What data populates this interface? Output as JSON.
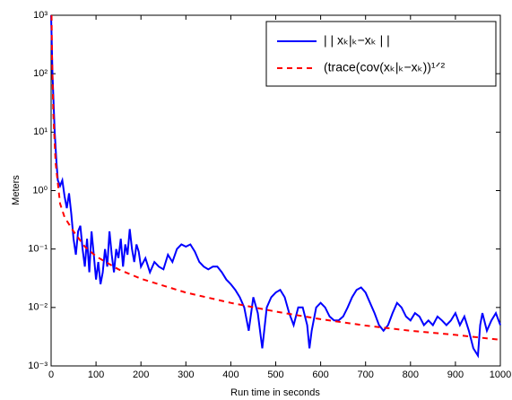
{
  "chart_data": {
    "type": "line",
    "xlabel": "Run time in seconds",
    "ylabel": "Meters",
    "xlim": [
      0,
      1000
    ],
    "xticks": [
      0,
      100,
      200,
      300,
      400,
      500,
      600,
      700,
      800,
      900,
      1000
    ],
    "ylim": [
      0.001,
      1000
    ],
    "log_y": true,
    "yticks": [
      {
        "value": 0.001,
        "label": "10⁻³"
      },
      {
        "value": 0.01,
        "label": "10⁻²"
      },
      {
        "value": 0.1,
        "label": "10⁻¹"
      },
      {
        "value": 1,
        "label": "10⁰"
      },
      {
        "value": 10,
        "label": "10¹"
      },
      {
        "value": 100,
        "label": "10²"
      },
      {
        "value": 1000,
        "label": "10³"
      }
    ],
    "legend": "upper right",
    "series": [
      {
        "name": "| | xₖ|ₖ−xₖ | |",
        "color": "#0000ff",
        "dash": false,
        "x": [
          0,
          3,
          5,
          8,
          12,
          15,
          20,
          25,
          30,
          35,
          40,
          45,
          50,
          55,
          60,
          65,
          70,
          75,
          80,
          85,
          90,
          95,
          100,
          105,
          110,
          115,
          120,
          125,
          130,
          135,
          140,
          145,
          150,
          155,
          160,
          165,
          170,
          175,
          180,
          185,
          190,
          195,
          200,
          210,
          220,
          230,
          240,
          250,
          260,
          270,
          280,
          290,
          300,
          310,
          320,
          330,
          340,
          350,
          360,
          370,
          380,
          390,
          400,
          410,
          420,
          430,
          440,
          450,
          460,
          470,
          480,
          490,
          500,
          510,
          520,
          530,
          540,
          550,
          560,
          570,
          575,
          580,
          590,
          600,
          610,
          620,
          630,
          640,
          650,
          660,
          670,
          680,
          690,
          700,
          710,
          720,
          730,
          740,
          750,
          760,
          770,
          780,
          790,
          800,
          810,
          820,
          830,
          840,
          850,
          860,
          870,
          880,
          890,
          900,
          910,
          920,
          930,
          940,
          950,
          955,
          960,
          970,
          980,
          990,
          1000
        ],
        "values": [
          1000,
          100,
          40,
          10,
          3,
          1.5,
          1.2,
          1.5,
          0.8,
          0.5,
          0.9,
          0.4,
          0.15,
          0.08,
          0.2,
          0.25,
          0.1,
          0.05,
          0.15,
          0.04,
          0.2,
          0.08,
          0.03,
          0.06,
          0.025,
          0.04,
          0.1,
          0.05,
          0.2,
          0.08,
          0.04,
          0.1,
          0.07,
          0.15,
          0.05,
          0.12,
          0.08,
          0.22,
          0.1,
          0.06,
          0.12,
          0.09,
          0.05,
          0.07,
          0.04,
          0.06,
          0.05,
          0.045,
          0.08,
          0.06,
          0.1,
          0.12,
          0.11,
          0.12,
          0.09,
          0.06,
          0.05,
          0.045,
          0.05,
          0.05,
          0.04,
          0.03,
          0.025,
          0.02,
          0.015,
          0.01,
          0.004,
          0.015,
          0.008,
          0.002,
          0.01,
          0.015,
          0.018,
          0.02,
          0.015,
          0.008,
          0.005,
          0.01,
          0.01,
          0.005,
          0.002,
          0.004,
          0.01,
          0.012,
          0.01,
          0.007,
          0.006,
          0.006,
          0.007,
          0.01,
          0.015,
          0.02,
          0.022,
          0.018,
          0.012,
          0.008,
          0.005,
          0.004,
          0.005,
          0.008,
          0.012,
          0.01,
          0.007,
          0.006,
          0.008,
          0.007,
          0.005,
          0.006,
          0.005,
          0.007,
          0.006,
          0.005,
          0.006,
          0.008,
          0.005,
          0.007,
          0.004,
          0.002,
          0.0015,
          0.005,
          0.008,
          0.004,
          0.006,
          0.008,
          0.005
        ]
      },
      {
        "name": "(trace(cov(xₖ|ₖ−xₖ))¹ᐟ²",
        "color": "#ff0000",
        "dash": true,
        "x": [
          1,
          2,
          5,
          10,
          20,
          30,
          50,
          75,
          100,
          150,
          200,
          300,
          400,
          500,
          600,
          700,
          800,
          900,
          1000
        ],
        "values": [
          1000,
          200,
          20,
          3,
          0.6,
          0.35,
          0.2,
          0.11,
          0.075,
          0.045,
          0.031,
          0.018,
          0.012,
          0.0085,
          0.0063,
          0.0049,
          0.004,
          0.0034,
          0.0028
        ]
      }
    ]
  }
}
